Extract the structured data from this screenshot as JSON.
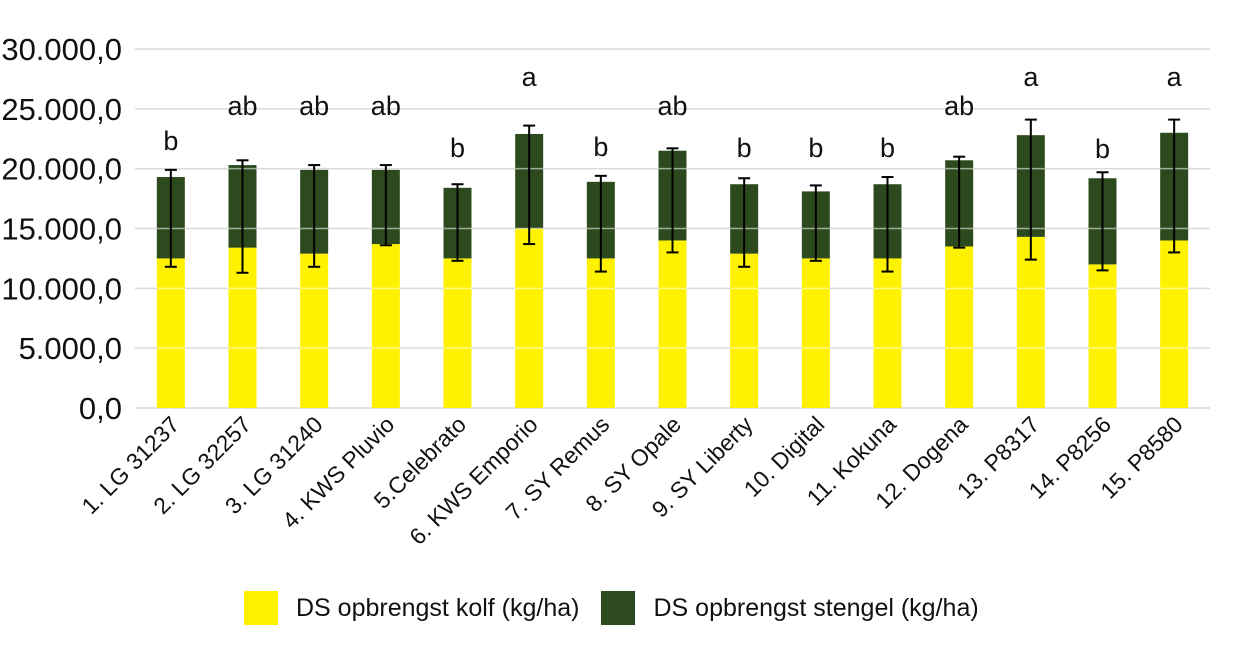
{
  "chart_data": {
    "type": "bar",
    "stacked": true,
    "title": "",
    "xlabel": "",
    "ylabel": "",
    "ylim": [
      0,
      30000
    ],
    "yticks": [
      0,
      5000,
      10000,
      15000,
      20000,
      25000,
      30000
    ],
    "ytick_labels": [
      "0,0",
      "5.000,0",
      "10.000,0",
      "15.000,0",
      "20.000,0",
      "25.000,0",
      "30.000,0"
    ],
    "grid": true,
    "legend_position": "bottom",
    "categories": [
      "1. LG 31237",
      "2. LG 32257",
      "3. LG 31240",
      "4. KWS  Pluvio",
      "5.Celebrato",
      "6. KWS Emporio",
      "7. SY Remus",
      "8. SY  Opale",
      "9. SY Liberty",
      "10. Digital",
      "11. Kokuna",
      "12. Dogena",
      "13. P8317",
      "14. P8256",
      "15. P8580"
    ],
    "series": [
      {
        "name": "DS opbrengst kolf (kg/ha)",
        "color": "#fff200",
        "values": [
          12500,
          13400,
          12900,
          13700,
          12500,
          15000,
          12500,
          14000,
          12900,
          12500,
          12500,
          13500,
          14300,
          12000,
          14000
        ]
      },
      {
        "name": "DS opbrengst stengel (kg/ha)",
        "color": "#2d4a1e",
        "values": [
          6800,
          6900,
          7000,
          6200,
          5900,
          7900,
          6400,
          7500,
          5800,
          5600,
          6200,
          7200,
          8500,
          7200,
          9000
        ]
      }
    ],
    "error_bars": {
      "lower": [
        11800,
        11300,
        11800,
        13600,
        12300,
        13700,
        11400,
        13000,
        11800,
        12300,
        11400,
        13400,
        12400,
        11500,
        13000
      ],
      "upper": [
        19900,
        20700,
        20300,
        20300,
        18700,
        23600,
        19400,
        21700,
        19200,
        18600,
        19300,
        21000,
        24100,
        19700,
        24100
      ]
    },
    "annotations": [
      "b",
      "ab",
      "ab",
      "ab",
      "b",
      "a",
      "b",
      "ab",
      "b",
      "b",
      "b",
      "ab",
      "a",
      "b",
      "a"
    ]
  }
}
